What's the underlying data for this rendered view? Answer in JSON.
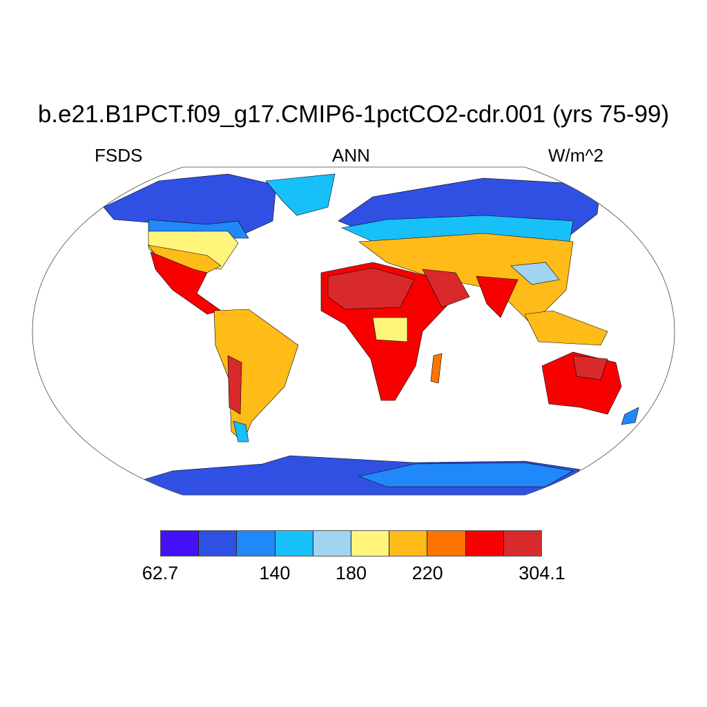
{
  "title": "b.e21.B1PCT.f09_g17.CMIP6-1pctCO2-cdr.001 (yrs 75-99)",
  "left_label": "FSDS",
  "center_label": "ANN",
  "right_label": "W/m^2",
  "map": {
    "projection": "Robinson",
    "variable": "FSDS",
    "units": "W/m^2"
  },
  "colorbar": {
    "colors": [
      "#4410f8",
      "#3050e4",
      "#2088f8",
      "#18c0fa",
      "#a0d4f0",
      "#fff57a",
      "#ffbb18",
      "#ff7400",
      "#f80000",
      "#d82a2a"
    ],
    "min": 62.7,
    "max": 304.1,
    "labels": [
      "62.7",
      "140",
      "180",
      "220",
      "304.1"
    ],
    "label_boundary_index": [
      0,
      3,
      5,
      7,
      10
    ]
  }
}
